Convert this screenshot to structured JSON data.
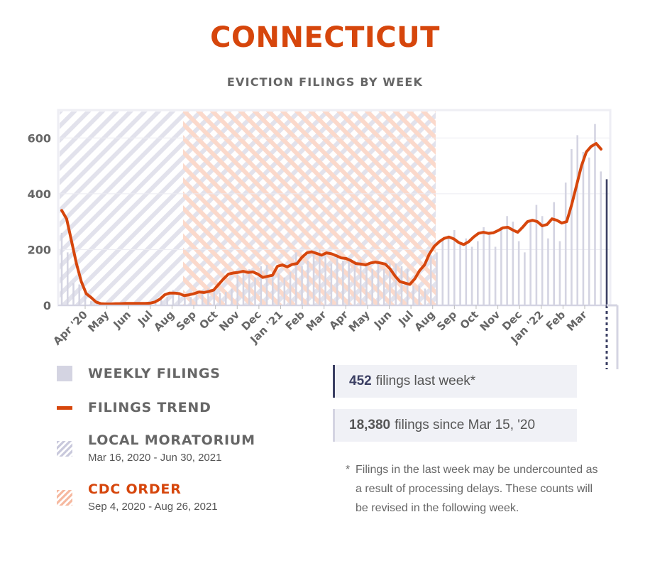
{
  "header": {
    "title": "CONNECTICUT",
    "subtitle": "EVICTION FILINGS BY WEEK"
  },
  "chart_data": {
    "type": "bar",
    "title": "EVICTION FILINGS BY WEEK",
    "y_ticks": [
      0,
      200,
      400,
      600
    ],
    "ylim": [
      0,
      700
    ],
    "x_month_labels": [
      "Apr '20",
      "May",
      "Jun",
      "Jul",
      "Aug",
      "Sep",
      "Oct",
      "Nov",
      "Dec",
      "Jan '21",
      "Feb",
      "Mar",
      "Apr",
      "May",
      "Jun",
      "Jul",
      "Aug",
      "Sep",
      "Oct",
      "Nov",
      "Dec",
      "Jan '22",
      "Feb",
      "Mar"
    ],
    "weekly_filings": [
      260,
      190,
      80,
      75,
      40,
      15,
      8,
      6,
      5,
      5,
      6,
      5,
      7,
      8,
      6,
      10,
      12,
      20,
      30,
      55,
      45,
      40,
      30,
      38,
      45,
      60,
      55,
      45,
      48,
      60,
      110,
      120,
      130,
      100,
      140,
      145,
      120,
      115,
      100,
      120,
      190,
      140,
      160,
      190,
      200,
      180,
      150,
      170,
      160,
      170,
      160,
      165,
      140,
      130,
      160,
      130,
      150,
      150,
      140,
      130,
      70,
      70,
      60,
      180,
      190,
      240,
      250,
      270,
      220,
      240,
      210,
      230,
      280,
      260,
      210,
      280,
      320,
      300,
      230,
      190,
      300,
      360,
      320,
      240,
      370,
      230,
      440,
      560,
      610,
      550,
      530,
      650,
      480,
      452
    ],
    "trend": [
      340,
      310,
      230,
      150,
      85,
      42,
      28,
      12,
      6,
      5,
      5,
      6,
      6,
      7,
      7,
      7,
      7,
      7,
      8,
      12,
      22,
      38,
      44,
      44,
      42,
      35,
      38,
      42,
      48,
      46,
      50,
      55,
      75,
      95,
      112,
      116,
      118,
      122,
      118,
      120,
      112,
      100,
      104,
      108,
      140,
      145,
      138,
      147,
      150,
      172,
      188,
      192,
      186,
      180,
      188,
      185,
      178,
      170,
      168,
      160,
      150,
      148,
      145,
      152,
      155,
      152,
      148,
      130,
      105,
      85,
      80,
      75,
      95,
      125,
      145,
      185,
      212,
      228,
      240,
      245,
      238,
      225,
      218,
      228,
      245,
      258,
      262,
      258,
      260,
      268,
      278,
      280,
      270,
      262,
      280,
      300,
      305,
      300,
      285,
      290,
      310,
      305,
      295,
      300,
      360,
      430,
      500,
      550,
      570,
      580,
      560
    ]
  },
  "legend": {
    "weekly_filings": "WEEKLY FILINGS",
    "filings_trend": "FILINGS TREND",
    "local_moratorium": "LOCAL MORATORIUM",
    "local_moratorium_dates": "Mar 16, 2020 - Jun 30, 2021",
    "cdc_order": "CDC ORDER",
    "cdc_order_dates": "Sep 4, 2020 - Aug 26, 2021"
  },
  "stats": {
    "last_week_value": "452",
    "last_week_text": "filings last week*",
    "since_value": "18,380",
    "since_text": "filings since Mar 15, '20"
  },
  "footnote": {
    "star": "*",
    "text": "Filings in the last week may be undercounted as a result of processing delays. These counts will be revised in the following week."
  },
  "colors": {
    "accent": "#d6460c",
    "bar": "#d4d4e2",
    "navy": "#3b3f63",
    "moratorium": "#c9c9dc",
    "cdc": "#f6b9a0"
  }
}
